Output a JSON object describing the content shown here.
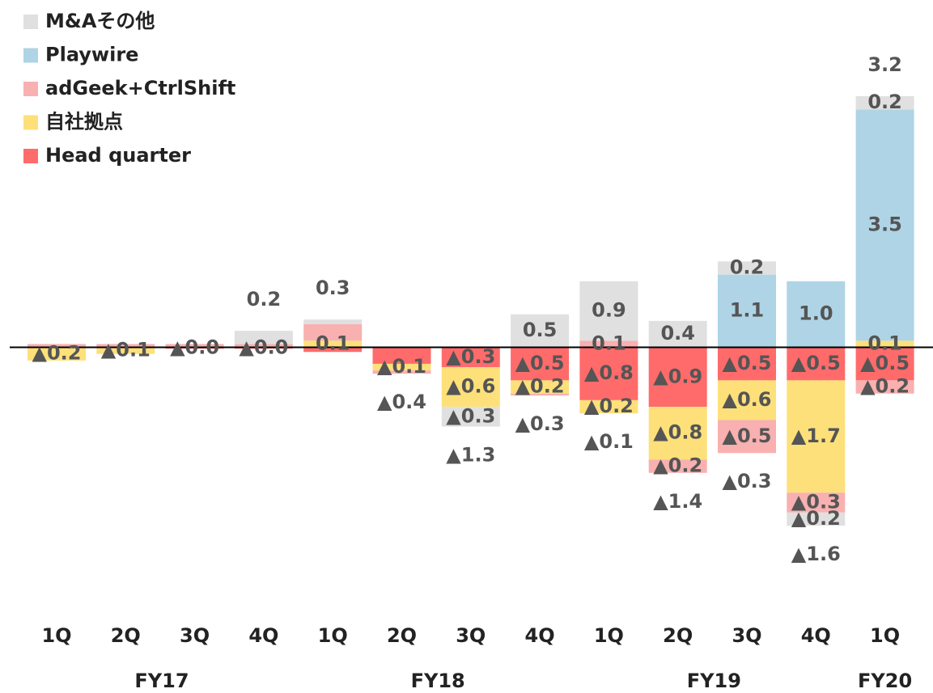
{
  "chart_data": {
    "type": "stacked_bar",
    "categories": [
      "1Q",
      "2Q",
      "3Q",
      "4Q",
      "1Q",
      "2Q",
      "3Q",
      "4Q",
      "1Q",
      "2Q",
      "3Q",
      "4Q",
      "1Q"
    ],
    "groups": [
      "FY17",
      "FY18",
      "FY19",
      "FY20"
    ],
    "ylim": [
      -3.8,
      4.4
    ],
    "series": [
      {
        "name": "Head quarter",
        "color": "#ff6b6b",
        "values": [
          null,
          null,
          -0.02,
          -0.02,
          -0.07,
          -0.25,
          -0.3,
          -0.5,
          -0.8,
          -0.9,
          -0.5,
          -0.5,
          -0.5
        ],
        "value_labels": [
          null,
          null,
          "▲0.0",
          "▲0.0",
          null,
          null,
          "▲0.3",
          "▲0.5",
          "▲0.8",
          "▲0.9",
          "▲0.5",
          "▲0.5",
          "▲0.5"
        ]
      },
      {
        "name": "自社拠点",
        "color": "#fde07a",
        "values": [
          -0.2,
          -0.1,
          null,
          null,
          0.1,
          -0.1,
          -0.6,
          -0.2,
          -0.2,
          -0.8,
          -0.6,
          -1.7,
          0.1
        ],
        "value_labels": [
          "▲0.2",
          "▲0.1",
          null,
          null,
          "0.1",
          "▲0.1",
          "▲0.6",
          "▲0.2",
          "▲0.2",
          "▲0.8",
          "▲0.6",
          "▲1.7",
          "0.1"
        ]
      },
      {
        "name": "adGeek+CtrlShift",
        "color": "#f9b0b0",
        "values": [
          0.05,
          0.05,
          0.05,
          0.05,
          0.25,
          -0.05,
          null,
          -0.03,
          0.1,
          -0.2,
          -0.5,
          -0.3,
          -0.2
        ],
        "value_labels": [
          null,
          null,
          null,
          null,
          null,
          null,
          null,
          null,
          "0.1",
          "▲0.2",
          "▲0.5",
          "▲0.3",
          "▲0.2"
        ]
      },
      {
        "name": "Playwire",
        "color": "#aed4e6",
        "values": [
          null,
          null,
          null,
          null,
          null,
          null,
          null,
          null,
          null,
          null,
          1.1,
          1.0,
          3.5
        ],
        "value_labels": [
          null,
          null,
          null,
          null,
          null,
          null,
          null,
          null,
          null,
          null,
          "1.1",
          "1.0",
          "3.5"
        ]
      },
      {
        "name": "M&Aその他",
        "color": "#e0e0e0",
        "values": [
          null,
          null,
          null,
          0.2,
          0.07,
          null,
          -0.3,
          0.5,
          0.9,
          0.4,
          0.2,
          -0.2,
          0.2
        ],
        "value_labels": [
          null,
          null,
          null,
          null,
          null,
          null,
          "▲0.3",
          "0.5",
          "0.9",
          "0.4",
          "0.2",
          "▲0.2",
          "0.2"
        ]
      }
    ],
    "totals": {
      "values": [
        null,
        null,
        null,
        0.2,
        0.3,
        -0.4,
        -1.3,
        -0.3,
        -0.1,
        -1.4,
        -0.3,
        -1.6,
        3.2
      ],
      "value_labels": [
        null,
        null,
        null,
        "0.2",
        "0.3",
        "▲0.4",
        "▲1.3",
        "▲0.3",
        "▲0.1",
        "▲1.4",
        "▲0.3",
        "▲1.6",
        "3.2"
      ]
    }
  }
}
